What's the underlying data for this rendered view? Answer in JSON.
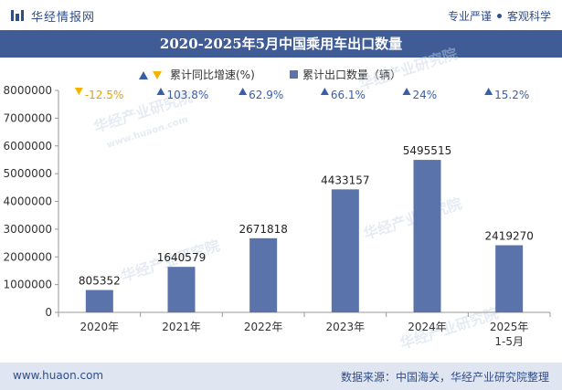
{
  "header": {
    "brand": "华经情报网",
    "tagline_1": "专业严谨",
    "tagline_2": "客观科学"
  },
  "title": "2020-2025年5月中国乘用车出口数量",
  "legend": {
    "growth_label": "累计同比增速(%)",
    "volume_label": "累计出口数量（辆）"
  },
  "footer": {
    "site": "www.huaon.com",
    "source": "数据来源：中国海关，华经产业研究院整理"
  },
  "colors": {
    "bar": "#5b73ab",
    "up": "#3a5ea8",
    "down": "#f2b400",
    "down_text": "#e8a200",
    "title_bg": "#3f5c97"
  },
  "chart_data": {
    "type": "bar",
    "categories": [
      "2020年",
      "2021年",
      "2022年",
      "2023年",
      "2024年",
      "2025年\n1-5月"
    ],
    "series": [
      {
        "name": "累计出口数量（辆）",
        "values": [
          805352,
          1640579,
          2671818,
          4433157,
          5495515,
          2419270
        ]
      },
      {
        "name": "累计同比增速(%)",
        "values": [
          -12.5,
          103.8,
          62.9,
          66.1,
          24,
          15.2
        ]
      }
    ],
    "growth_labels": [
      "-12.5%",
      "103.8%",
      "62.9%",
      "66.1%",
      "24%",
      "15.2%"
    ],
    "ylim": [
      0,
      8000000
    ],
    "yticks": [
      "0",
      "1000000",
      "2000000",
      "3000000",
      "4000000",
      "5000000",
      "6000000",
      "7000000",
      "8000000"
    ],
    "grid": false,
    "legend_position": "top"
  }
}
